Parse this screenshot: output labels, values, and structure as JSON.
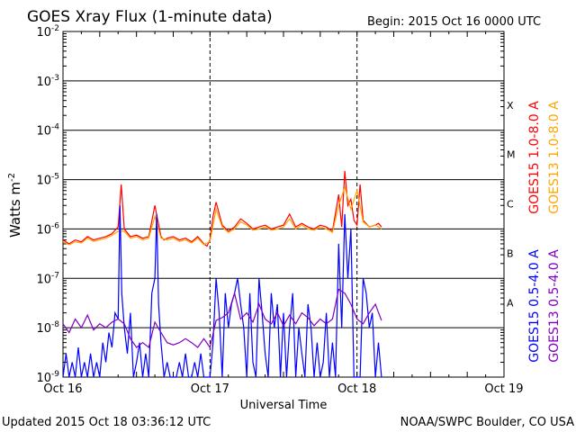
{
  "chart_data": {
    "type": "line",
    "title": "GOES Xray Flux (1-minute data)",
    "begin_label": "Begin:  2015 Oct 16 0000 UTC",
    "ylabel": "Watts m",
    "ylabel_sup": "-2",
    "xlabel": "Universal Time",
    "yscale": "log",
    "ylim": [
      1e-09,
      0.01
    ],
    "y_ticks": [
      {
        "base": "10",
        "exp": "-2"
      },
      {
        "base": "10",
        "exp": "-3"
      },
      {
        "base": "10",
        "exp": "-4"
      },
      {
        "base": "10",
        "exp": "-5"
      },
      {
        "base": "10",
        "exp": "-6"
      },
      {
        "base": "10",
        "exp": "-7"
      },
      {
        "base": "10",
        "exp": "-8"
      },
      {
        "base": "10",
        "exp": "-9"
      }
    ],
    "x_ticks": [
      "Oct 16",
      "Oct 17",
      "Oct 18",
      "Oct 19"
    ],
    "xlim_hours": [
      0,
      72
    ],
    "flare_classes": [
      "X",
      "M",
      "C",
      "B",
      "A"
    ],
    "grid": true,
    "legend_placement": "right, vertical",
    "series": [
      {
        "name": "GOES15 1.0-8.0 A",
        "color": "#ff0000",
        "x_hours": [
          0,
          1,
          2,
          3,
          4,
          5,
          6,
          7,
          8,
          9,
          9.5,
          10,
          11,
          12,
          13,
          14,
          15,
          16,
          16.5,
          17,
          18,
          19,
          20,
          21,
          22,
          23,
          23.5,
          24,
          24.5,
          25,
          26,
          27,
          28,
          29,
          30,
          31,
          32,
          33,
          34,
          35,
          36,
          37,
          38,
          39,
          40,
          41,
          42,
          43,
          44,
          45,
          45.5,
          46,
          46.5,
          47,
          47.5,
          48,
          48.5,
          49,
          50,
          51,
          51.5,
          52
        ],
        "y": [
          6e-07,
          5e-07,
          6e-07,
          5.5e-07,
          7e-07,
          6e-07,
          6.5e-07,
          7e-07,
          8e-07,
          1.1e-06,
          8e-06,
          1e-06,
          7e-07,
          7.5e-07,
          6.5e-07,
          7e-07,
          3e-06,
          7e-07,
          6e-07,
          6.5e-07,
          7e-07,
          6e-07,
          6.5e-07,
          5.5e-07,
          7e-07,
          5e-07,
          4.5e-07,
          6e-07,
          1.8e-06,
          3.5e-06,
          1.2e-06,
          9e-07,
          1.1e-06,
          1.6e-06,
          1.3e-06,
          1e-06,
          1.1e-06,
          1.2e-06,
          1e-06,
          1.1e-06,
          1.2e-06,
          2e-06,
          1.1e-06,
          1.3e-06,
          1.1e-06,
          1e-06,
          1.2e-06,
          1.1e-06,
          9e-07,
          5e-06,
          1.1e-06,
          1.5e-05,
          3e-06,
          4e-06,
          1.5e-06,
          1.2e-06,
          8e-06,
          1.5e-06,
          1.1e-06,
          1.2e-06,
          1.3e-06,
          1.1e-06
        ]
      },
      {
        "name": "GOES13 1.0-8.0 A",
        "color": "#ffa500",
        "x_hours": [
          0,
          1,
          2,
          3,
          4,
          5,
          6,
          7,
          8,
          9,
          10,
          11,
          12,
          13,
          14,
          15,
          16,
          17,
          18,
          19,
          20,
          21,
          22,
          23,
          24,
          25,
          26,
          27,
          28,
          29,
          30,
          31,
          32,
          33,
          34,
          35,
          36,
          37,
          38,
          39,
          40,
          41,
          42,
          43,
          44,
          45,
          46,
          47,
          48,
          49,
          50,
          51,
          52
        ],
        "y": [
          5.5e-07,
          4.8e-07,
          5.5e-07,
          5.2e-07,
          6.5e-07,
          5.6e-07,
          6e-07,
          6.5e-07,
          7.4e-07,
          9e-07,
          9e-07,
          6.5e-07,
          7e-07,
          6e-07,
          6.5e-07,
          1.8e-06,
          6.5e-07,
          6e-07,
          6.5e-07,
          5.6e-07,
          6e-07,
          5.2e-07,
          6.5e-07,
          4.8e-07,
          5.6e-07,
          2.5e-06,
          1.1e-06,
          8.5e-07,
          1e-06,
          1.4e-06,
          1.2e-06,
          9.5e-07,
          1e-06,
          1.1e-06,
          9.5e-07,
          1e-06,
          1.1e-06,
          1.6e-06,
          1e-06,
          1.2e-06,
          1e-06,
          9.5e-07,
          1.1e-06,
          1e-06,
          8.5e-07,
          3e-06,
          7e-06,
          2.5e-06,
          6e-06,
          1.4e-06,
          1.1e-06,
          1.2e-06,
          1e-06
        ]
      },
      {
        "name": "GOES15 0.5-4.0 A",
        "color": "#0000ff",
        "x_hours": [
          0,
          0.5,
          1,
          1.5,
          2,
          2.5,
          3,
          3.5,
          4,
          4.5,
          5,
          5.5,
          6,
          6.5,
          7,
          7.5,
          8,
          8.5,
          9,
          9.3,
          9.6,
          10,
          10.5,
          11,
          11.5,
          12,
          12.5,
          13,
          13.5,
          14,
          14.5,
          15,
          15.3,
          15.6,
          16,
          16.5,
          17,
          17.5,
          18,
          18.5,
          19,
          19.5,
          20,
          20.5,
          21,
          21.5,
          22,
          22.5,
          23,
          23.5,
          24,
          24.5,
          25,
          25.5,
          26,
          26.5,
          27,
          27.5,
          28,
          28.5,
          29,
          29.5,
          30,
          30.5,
          31,
          31.5,
          32,
          32.5,
          33,
          33.5,
          34,
          34.5,
          35,
          35.5,
          36,
          36.5,
          37,
          37.5,
          38,
          38.5,
          39,
          39.5,
          40,
          40.5,
          41,
          41.5,
          42,
          42.5,
          43,
          43.5,
          44,
          44.5,
          45,
          45.5,
          46,
          46.5,
          47,
          47.5,
          48,
          48.5,
          49,
          49.5,
          50,
          50.5,
          51,
          51.5,
          52
        ],
        "y": [
          1e-09,
          3e-09,
          1e-09,
          2e-09,
          1e-09,
          4e-09,
          1e-09,
          2e-09,
          1e-09,
          3e-09,
          1e-09,
          2e-09,
          1e-09,
          5e-09,
          2e-09,
          8e-09,
          4e-09,
          2e-08,
          1.5e-08,
          3e-06,
          5e-08,
          1e-08,
          3e-09,
          2e-08,
          1e-09,
          2e-09,
          5e-09,
          1e-09,
          3e-09,
          1e-09,
          5e-08,
          1e-07,
          2e-06,
          3e-08,
          5e-09,
          1e-09,
          2e-09,
          1e-09,
          1e-09,
          1e-09,
          2e-09,
          1e-09,
          3e-09,
          1e-09,
          1e-09,
          2e-09,
          1e-09,
          3e-09,
          1e-09,
          1e-09,
          1e-09,
          5e-09,
          1e-07,
          2e-08,
          1e-09,
          5e-08,
          1e-08,
          3e-08,
          5e-08,
          1e-07,
          3e-08,
          1e-08,
          1e-09,
          5e-08,
          2e-09,
          1e-09,
          1e-07,
          2e-08,
          3e-09,
          1e-09,
          5e-08,
          1e-08,
          3e-08,
          1e-09,
          2e-08,
          1e-09,
          1e-08,
          5e-08,
          1e-09,
          1e-08,
          3e-09,
          1e-09,
          3e-08,
          1e-08,
          1e-09,
          5e-09,
          1e-09,
          2e-09,
          2e-08,
          1e-09,
          5e-09,
          1e-09,
          5e-07,
          1e-08,
          2e-06,
          1e-07,
          1e-06,
          1e-09,
          1e-09,
          1e-09,
          1e-07,
          5e-08,
          1e-08,
          2e-08,
          1e-09,
          5e-09,
          1e-09
        ]
      },
      {
        "name": "GOES13 0.5-4.0 A",
        "color": "#8000c0",
        "x_hours": [
          0,
          1,
          2,
          3,
          4,
          5,
          6,
          7,
          8,
          9,
          10,
          11,
          12,
          13,
          14,
          15,
          16,
          17,
          18,
          19,
          20,
          21,
          22,
          23,
          24,
          25,
          26,
          27,
          28,
          29,
          30,
          31,
          32,
          33,
          34,
          35,
          36,
          37,
          38,
          39,
          40,
          41,
          42,
          43,
          44,
          45,
          46,
          47,
          48,
          49,
          50,
          51,
          52
        ],
        "y": [
          1.2e-08,
          8e-09,
          1.5e-08,
          1e-08,
          1.8e-08,
          9e-09,
          1.2e-08,
          1e-08,
          1.3e-08,
          1.5e-08,
          1.2e-08,
          6e-09,
          4e-09,
          5e-09,
          4e-09,
          1.3e-08,
          8e-09,
          5e-09,
          4.5e-09,
          5e-09,
          6e-09,
          5e-09,
          4e-09,
          6e-09,
          4e-09,
          1.4e-08,
          1.6e-08,
          2e-08,
          5e-08,
          1.5e-08,
          2e-08,
          1.3e-08,
          3e-08,
          1.5e-08,
          1.2e-08,
          2e-08,
          1.1e-08,
          1.8e-08,
          1.2e-08,
          2e-08,
          1.6e-08,
          1.1e-08,
          1.5e-08,
          1.2e-08,
          1.5e-08,
          6e-08,
          5e-08,
          3e-08,
          1.5e-08,
          1.2e-08,
          2e-08,
          3e-08,
          1.4e-08
        ]
      }
    ]
  },
  "footer": {
    "updated": "Updated 2015 Oct 18 03:36:12 UTC",
    "credit": "NOAA/SWPC Boulder, CO USA"
  }
}
